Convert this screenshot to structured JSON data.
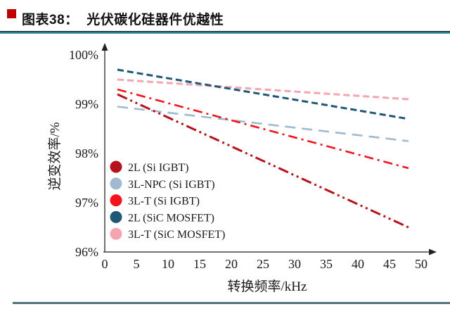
{
  "header": {
    "title": "图表38：  光伏碳化硅器件优越性",
    "bullet_color": "#c00000",
    "underline_dark_color": "#1d4050",
    "underline_teal_color": "#3f9cb0"
  },
  "footer": {
    "line_color": "#4e737c"
  },
  "chart_data": {
    "type": "line",
    "title": "",
    "xlabel": "转换频率/kHz",
    "ylabel": "逆变效率/%",
    "xlim": [
      0,
      50
    ],
    "ylim": [
      96,
      100
    ],
    "x_ticks": [
      0,
      5,
      10,
      15,
      20,
      25,
      30,
      35,
      40,
      45,
      50
    ],
    "y_ticks": [
      96,
      97,
      98,
      99,
      100
    ],
    "y_tick_labels": [
      "96%",
      "97%",
      "98%",
      "99%",
      "100%"
    ],
    "grid": false,
    "legend_position": "inside-bottom-left",
    "x": [
      2,
      48
    ],
    "series": [
      {
        "name": "2L (Si IGBT)",
        "color": "#b5121b",
        "dash": "dash-dot-dot",
        "width": 3,
        "values": [
          99.2,
          96.5
        ]
      },
      {
        "name": "3L-NPC (Si IGBT)",
        "color": "#9fbace",
        "dash": "long-dash",
        "width": 2.6,
        "values": [
          98.95,
          98.25
        ]
      },
      {
        "name": "3L-T (Si IGBT)",
        "color": "#f2131c",
        "dash": "dash-dot",
        "width": 2.6,
        "values": [
          99.3,
          97.7
        ]
      },
      {
        "name": "2L (SiC MOSFET)",
        "color": "#1e5876",
        "dash": "dash",
        "width": 3,
        "values": [
          99.7,
          98.7
        ]
      },
      {
        "name": "3L-T (SiC MOSFET)",
        "color": "#f4a5b0",
        "dash": "dash",
        "width": 3,
        "values": [
          99.5,
          99.1
        ]
      }
    ]
  }
}
